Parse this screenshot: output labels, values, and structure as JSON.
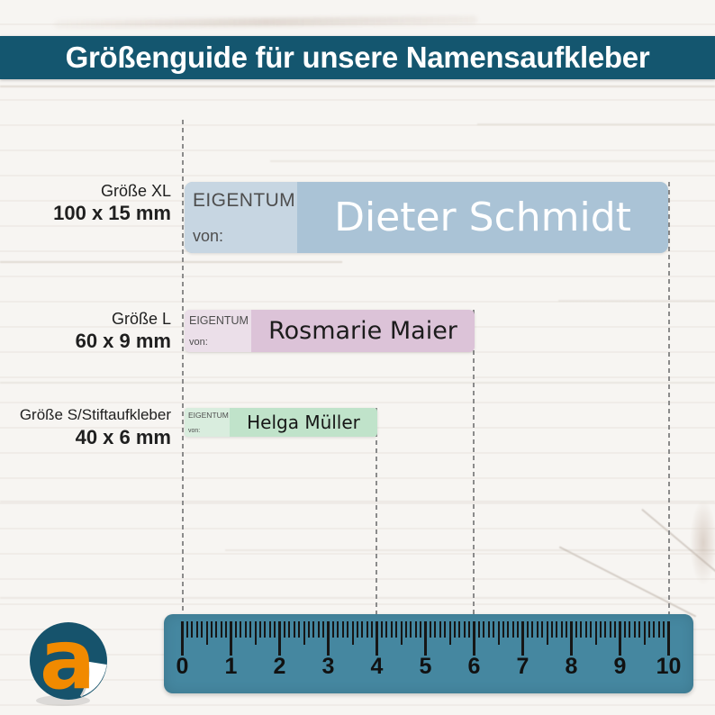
{
  "header": {
    "title": "Größenguide für unsere Namensaufkleber"
  },
  "size_guide": {
    "rows": [
      {
        "size": "Größe XL",
        "dimensions": "100 x 15 mm",
        "sticker": {
          "property_label": "EIGENTUM",
          "of_label": "von:",
          "name": "Dieter Schmidt",
          "color": "#aac3d6",
          "panel_color": "#c7d6e2",
          "name_color": "#ffffff"
        }
      },
      {
        "size": "Größe L",
        "dimensions": "60 x 9 mm",
        "sticker": {
          "property_label": "EIGENTUM",
          "of_label": "von:",
          "name": "Rosmarie Maier",
          "color": "#dcc3d8",
          "panel_color": "#ebdfe9",
          "name_color": "#1c1c1c"
        }
      },
      {
        "size": "Größe S/Stiftaufkleber",
        "dimensions": "40 x 6 mm",
        "sticker": {
          "property_label": "EIGENTUM",
          "of_label": "von:",
          "name": "Helga Müller",
          "color": "#c0e3ca",
          "panel_color": "#d9edde",
          "name_color": "#161616"
        }
      }
    ]
  },
  "ruler": {
    "labels": [
      "0",
      "1",
      "2",
      "3",
      "4",
      "5",
      "6",
      "7",
      "8",
      "9",
      "10"
    ],
    "color": "#4587a0",
    "tick_color": "#161616"
  },
  "logo": {
    "letter": "a",
    "circle_color": "#16536c",
    "letter_color": "#f18a00"
  },
  "colors": {
    "banner": "#14566f",
    "dashed_line": "#8b8b8b",
    "background": "#f7f5f2"
  }
}
